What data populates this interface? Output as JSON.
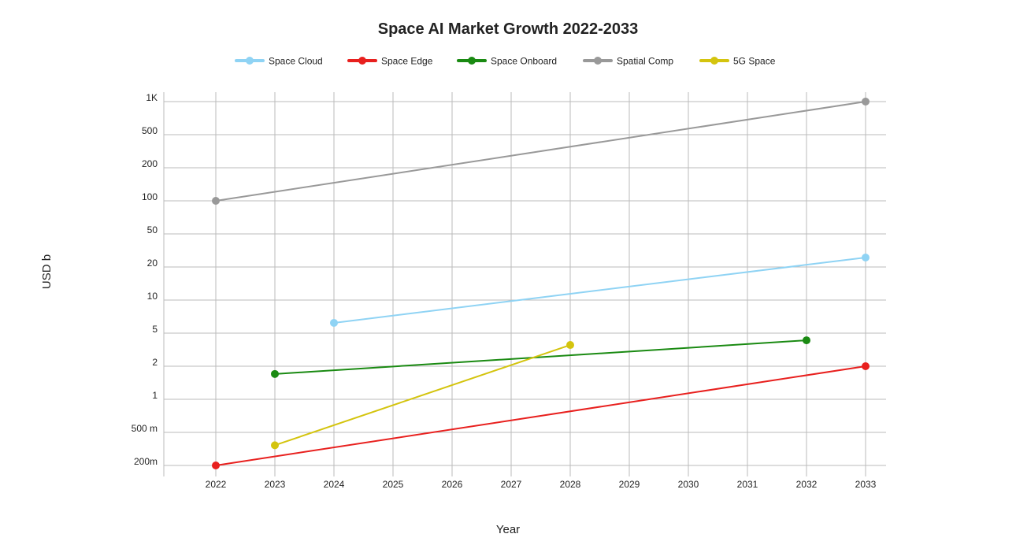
{
  "chart_data": {
    "type": "line",
    "title": "Space AI Market Growth 2022-2033",
    "xlabel": "Year",
    "ylabel": "USD b",
    "y_scale": "log",
    "grid": true,
    "legend_position": "top",
    "x_ticks": [
      "2022",
      "2023",
      "2024",
      "2025",
      "2026",
      "2027",
      "2028",
      "2029",
      "2030",
      "2031",
      "2032",
      "2033"
    ],
    "y_ticks": [
      {
        "value": 0.2,
        "label": "200m"
      },
      {
        "value": 0.5,
        "label": "500 m"
      },
      {
        "value": 1,
        "label": "1"
      },
      {
        "value": 2,
        "label": "2"
      },
      {
        "value": 5,
        "label": "5"
      },
      {
        "value": 10,
        "label": "10"
      },
      {
        "value": 20,
        "label": "20"
      },
      {
        "value": 50,
        "label": "50"
      },
      {
        "value": 100,
        "label": "100"
      },
      {
        "value": 200,
        "label": "200"
      },
      {
        "value": 500,
        "label": "500"
      },
      {
        "value": 1000,
        "label": "1K"
      }
    ],
    "series": [
      {
        "name": "Space Cloud",
        "color": "#8fd3f4",
        "points": [
          [
            2024,
            6.2
          ],
          [
            2033,
            26
          ]
        ]
      },
      {
        "name": "Space Edge",
        "color": "#e8201e",
        "points": [
          [
            2022,
            0.2
          ],
          [
            2033,
            2
          ]
        ]
      },
      {
        "name": "Space Onboard",
        "color": "#1a8a12",
        "points": [
          [
            2023,
            1.7
          ],
          [
            2032,
            4.1
          ]
        ]
      },
      {
        "name": "Spatial Comp",
        "color": "#999999",
        "points": [
          [
            2022,
            100
          ],
          [
            2033,
            1000
          ]
        ]
      },
      {
        "name": "5G Space",
        "color": "#d4c40e",
        "points": [
          [
            2023,
            0.35
          ],
          [
            2028,
            3.6
          ]
        ]
      }
    ]
  }
}
